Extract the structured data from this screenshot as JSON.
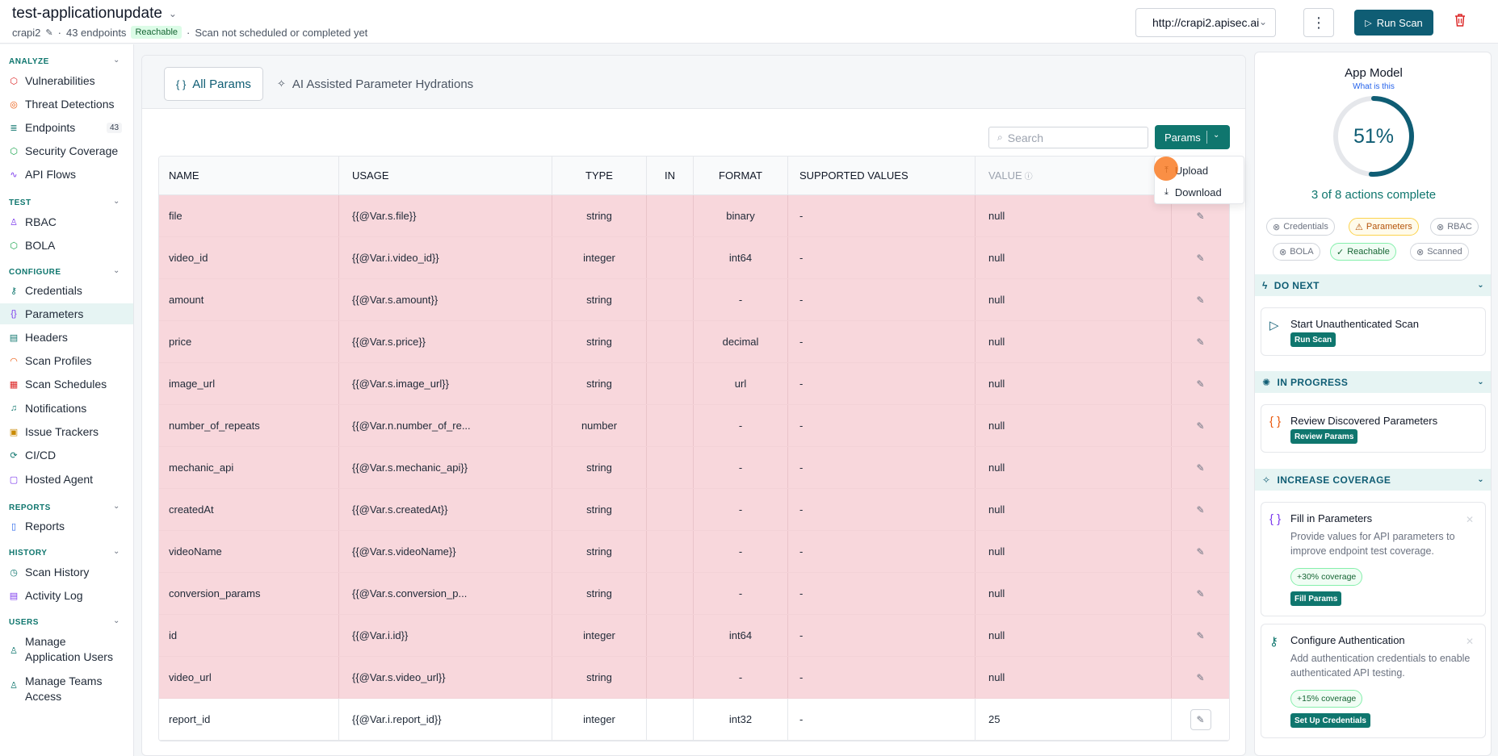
{
  "header": {
    "app_name": "test-applicationupdate",
    "app_id": "crapi2",
    "endpoints": "43 endpoints",
    "reachable": "Reachable",
    "scan_status": "Scan not scheduled or completed yet",
    "url": "http://crapi2.apisec.ai",
    "run_scan": "Run Scan"
  },
  "sidebar": {
    "sections": {
      "analyze": "ANALYZE",
      "test": "TEST",
      "configure": "CONFIGURE",
      "reports": "REPORTS",
      "history": "HISTORY",
      "users": "USERS"
    },
    "items": {
      "vulnerabilities": "Vulnerabilities",
      "threat_detections": "Threat Detections",
      "endpoints": "Endpoints",
      "endpoints_count": "43",
      "security_coverage": "Security Coverage",
      "api_flows": "API Flows",
      "rbac": "RBAC",
      "bola": "BOLA",
      "credentials": "Credentials",
      "parameters": "Parameters",
      "headers": "Headers",
      "scan_profiles": "Scan Profiles",
      "scan_schedules": "Scan Schedules",
      "notifications": "Notifications",
      "issue_trackers": "Issue Trackers",
      "cicd": "CI/CD",
      "hosted_agent": "Hosted Agent",
      "reports": "Reports",
      "scan_history": "Scan History",
      "activity_log": "Activity Log",
      "manage_app_users_1": "Manage",
      "manage_app_users_2": "Application Users",
      "manage_teams_1": "Manage Teams",
      "manage_teams_2": "Access"
    }
  },
  "main": {
    "tabs": {
      "all_params": "All Params",
      "ai_assisted": "AI Assisted Parameter Hydrations"
    },
    "search_placeholder": "Search",
    "params_button": "Params",
    "dropdown": {
      "upload": "Upload",
      "download": "Download"
    },
    "columns": {
      "name": "NAME",
      "usage": "USAGE",
      "type": "TYPE",
      "in": "IN",
      "format": "FORMAT",
      "supported": "SUPPORTED VALUES",
      "value": "VALUE"
    },
    "rows": [
      {
        "name": "file",
        "usage": "{{@Var.s.file}}",
        "type": "string",
        "in": "",
        "format": "binary",
        "supported": "-",
        "value": "null"
      },
      {
        "name": "video_id",
        "usage": "{{@Var.i.video_id}}",
        "type": "integer",
        "in": "",
        "format": "int64",
        "supported": "-",
        "value": "null"
      },
      {
        "name": "amount",
        "usage": "{{@Var.s.amount}}",
        "type": "string",
        "in": "",
        "format": "-",
        "supported": "-",
        "value": "null"
      },
      {
        "name": "price",
        "usage": "{{@Var.s.price}}",
        "type": "string",
        "in": "",
        "format": "decimal",
        "supported": "-",
        "value": "null"
      },
      {
        "name": "image_url",
        "usage": "{{@Var.s.image_url}}",
        "type": "string",
        "in": "",
        "format": "url",
        "supported": "-",
        "value": "null"
      },
      {
        "name": "number_of_repeats",
        "usage": "{{@Var.n.number_of_re...",
        "type": "number",
        "in": "",
        "format": "-",
        "supported": "-",
        "value": "null"
      },
      {
        "name": "mechanic_api",
        "usage": "{{@Var.s.mechanic_api}}",
        "type": "string",
        "in": "",
        "format": "-",
        "supported": "-",
        "value": "null"
      },
      {
        "name": "createdAt",
        "usage": "{{@Var.s.createdAt}}",
        "type": "string",
        "in": "",
        "format": "-",
        "supported": "-",
        "value": "null"
      },
      {
        "name": "videoName",
        "usage": "{{@Var.s.videoName}}",
        "type": "string",
        "in": "",
        "format": "-",
        "supported": "-",
        "value": "null"
      },
      {
        "name": "conversion_params",
        "usage": "{{@Var.s.conversion_p...",
        "type": "string",
        "in": "",
        "format": "-",
        "supported": "-",
        "value": "null"
      },
      {
        "name": "id",
        "usage": "{{@Var.i.id}}",
        "type": "integer",
        "in": "",
        "format": "int64",
        "supported": "-",
        "value": "null"
      },
      {
        "name": "video_url",
        "usage": "{{@Var.s.video_url}}",
        "type": "string",
        "in": "",
        "format": "-",
        "supported": "-",
        "value": "null"
      },
      {
        "name": "report_id",
        "usage": "{{@Var.i.report_id}}",
        "type": "integer",
        "in": "",
        "format": "int32",
        "supported": "-",
        "value": "25"
      }
    ]
  },
  "app_model": {
    "title": "App Model",
    "link": "What is this",
    "percent_label": "51%",
    "percent": 51,
    "progress_text": "3 of 8 actions complete",
    "chips": {
      "credentials": "Credentials",
      "parameters": "Parameters",
      "rbac": "RBAC",
      "bola": "BOLA",
      "reachable": "Reachable",
      "scanned": "Scanned"
    },
    "do_next": {
      "header": "DO NEXT",
      "title": "Start Unauthenticated Scan",
      "button": "Run Scan"
    },
    "in_progress": {
      "header": "IN PROGRESS",
      "title": "Review Discovered Parameters",
      "button": "Review Params"
    },
    "increase_coverage": {
      "header": "INCREASE COVERAGE",
      "card1_title": "Fill in Parameters",
      "card1_desc": "Provide values for API parameters to improve endpoint test coverage.",
      "card1_cov": "+30% coverage",
      "card1_button": "Fill Params",
      "card2_title": "Configure Authentication",
      "card2_desc": "Add authentication credentials to enable authenticated API testing.",
      "card2_cov": "+15% coverage",
      "card2_button": "Set Up Credentials"
    },
    "colors": {
      "accent": "#0f766e",
      "ring": "#0f5d74",
      "warn": "#b45309"
    }
  }
}
